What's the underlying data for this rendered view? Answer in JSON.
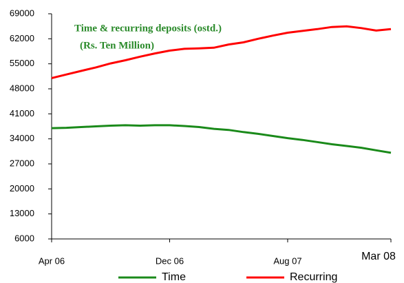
{
  "chart_data": {
    "type": "line",
    "title": "Time & recurring deposits (ostd.)",
    "subtitle": "(Rs. Ten Million)",
    "categories": [
      "Apr 06",
      null,
      null,
      null,
      null,
      null,
      null,
      null,
      "Dec 06",
      null,
      null,
      null,
      null,
      null,
      null,
      null,
      "Aug 07",
      null,
      null,
      null,
      null,
      null,
      null,
      "Mar 08"
    ],
    "series": [
      {
        "name": "Time",
        "color": "#1a8a1a",
        "values": [
          37000,
          37100,
          37300,
          37500,
          37700,
          37800,
          37700,
          37800,
          37800,
          37600,
          37300,
          36800,
          36500,
          35900,
          35400,
          34800,
          34200,
          33700,
          33100,
          32500,
          32000,
          31500,
          30800,
          30100
        ]
      },
      {
        "name": "Recurring",
        "color": "#ff0000",
        "values": [
          51000,
          52000,
          53000,
          54000,
          55100,
          56000,
          57000,
          57900,
          58700,
          59200,
          59300,
          59500,
          60400,
          61000,
          62000,
          62900,
          63700,
          64200,
          64700,
          65300,
          65500,
          65000,
          64300,
          64700
        ]
      }
    ],
    "ylim": [
      6000,
      69000
    ],
    "yticks": [
      6000,
      13000,
      20000,
      27000,
      34000,
      41000,
      48000,
      55000,
      62000,
      69000
    ],
    "legend": "bottom"
  }
}
